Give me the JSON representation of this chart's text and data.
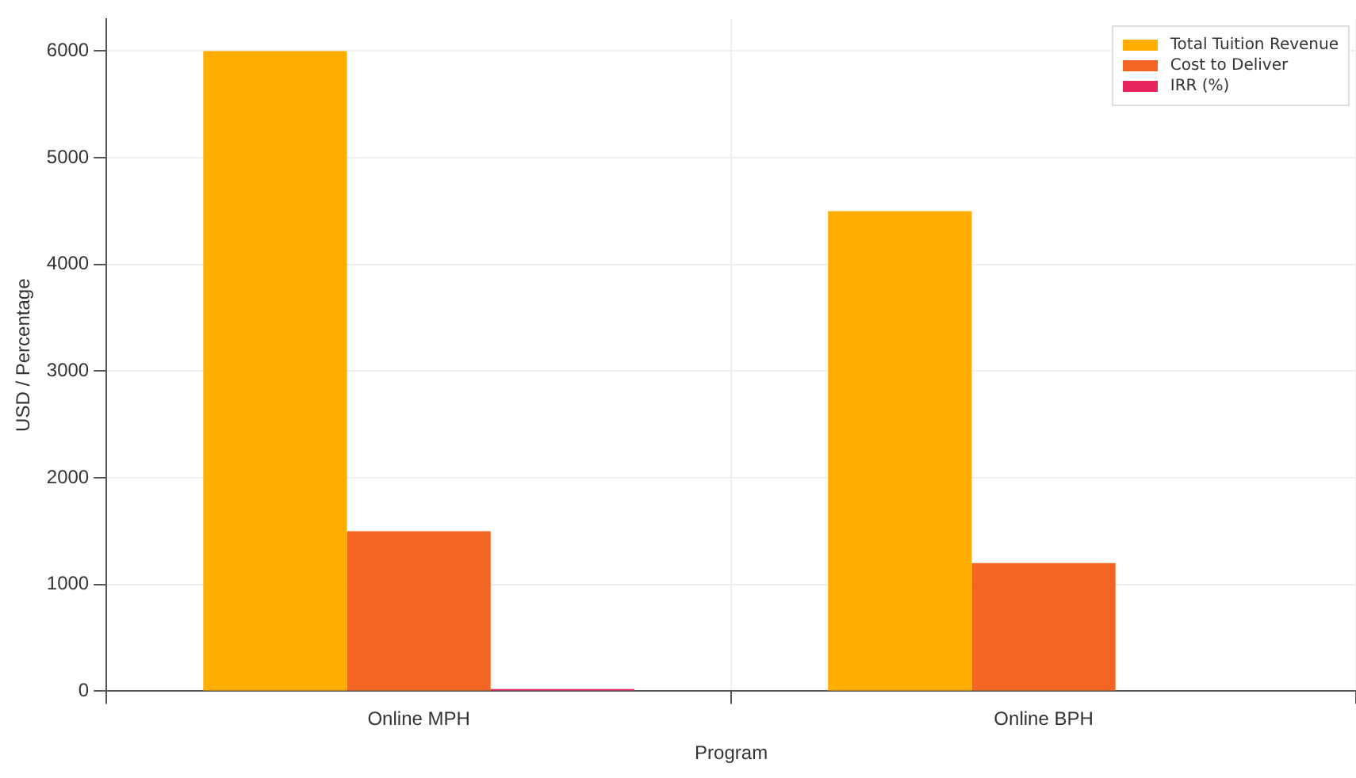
{
  "chart_data": {
    "type": "bar",
    "xlabel": "Program",
    "ylabel": "USD / Percentage",
    "categories": [
      "Online MPH",
      "Online BPH"
    ],
    "series": [
      {
        "name": "Total Tuition Revenue",
        "color": "#ffae00",
        "values": [
          6000,
          4500
        ]
      },
      {
        "name": "Cost to Deliver",
        "color": "#f26522",
        "values": [
          1500,
          1200
        ]
      },
      {
        "name": "IRR (%)",
        "color": "#e8265e",
        "values": [
          20,
          null
        ]
      }
    ],
    "ylim": [
      0,
      6300
    ],
    "yticks": [
      0,
      1000,
      2000,
      3000,
      4000,
      5000,
      6000
    ],
    "grid": true,
    "legend": "top right"
  }
}
